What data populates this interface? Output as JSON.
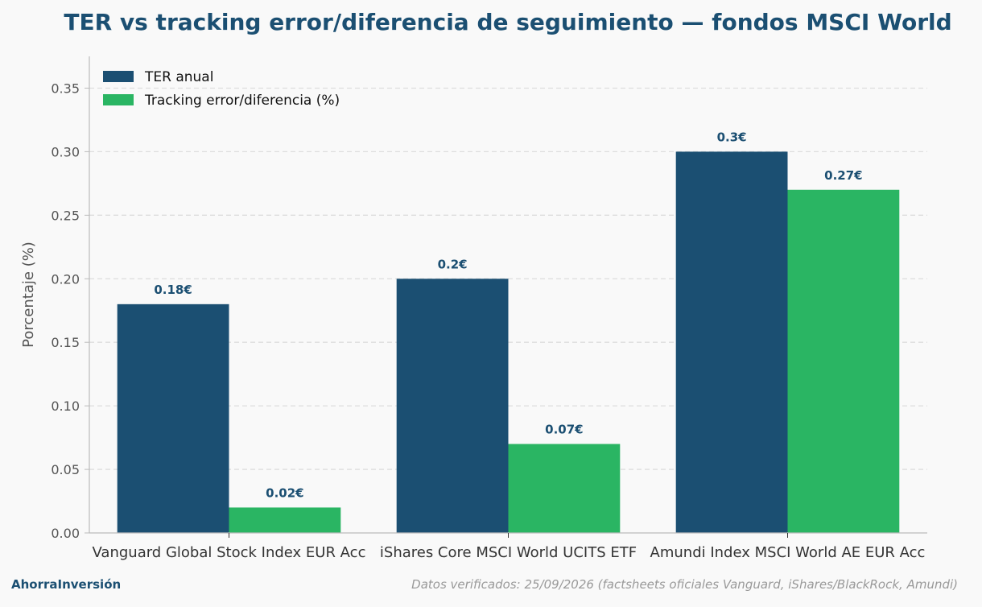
{
  "chart_data": {
    "type": "bar",
    "title": "TER vs tracking error/diferencia de seguimiento — fondos MSCI World",
    "xlabel": "",
    "ylabel": "Porcentaje (%)",
    "ylim": [
      0,
      0.375
    ],
    "yticks": [
      "0.00",
      "0.05",
      "0.10",
      "0.15",
      "0.20",
      "0.25",
      "0.30",
      "0.35"
    ],
    "ytick_values": [
      0,
      0.05,
      0.1,
      0.15,
      0.2,
      0.25,
      0.3,
      0.35
    ],
    "grid": true,
    "legend_position": "top-left",
    "categories": [
      "Vanguard Global Stock Index EUR Acc",
      "iShares Core MSCI World UCITS ETF",
      "Amundi Index MSCI World AE EUR Acc"
    ],
    "series": [
      {
        "name": "TER anual",
        "color": "#1b4f72",
        "values": [
          0.18,
          0.2,
          0.3
        ],
        "labels": [
          "0.18€",
          "0.2€",
          "0.3€"
        ]
      },
      {
        "name": "Tracking error/diferencia (%)",
        "color": "#2ab563",
        "values": [
          0.02,
          0.07,
          0.27
        ],
        "labels": [
          "0.02€",
          "0.07€",
          "0.27€"
        ]
      }
    ]
  },
  "footer": {
    "brand": "AhorraInversión",
    "source": "Datos verificados: 25/09/2026 (factsheets oficiales Vanguard, iShares/BlackRock, Amundi)"
  },
  "colors": {
    "title": "#1b4f72",
    "data_label": "#1b4f72",
    "grid": "#dddddd",
    "axis": "#bbbbbb",
    "source_text": "#999999"
  }
}
